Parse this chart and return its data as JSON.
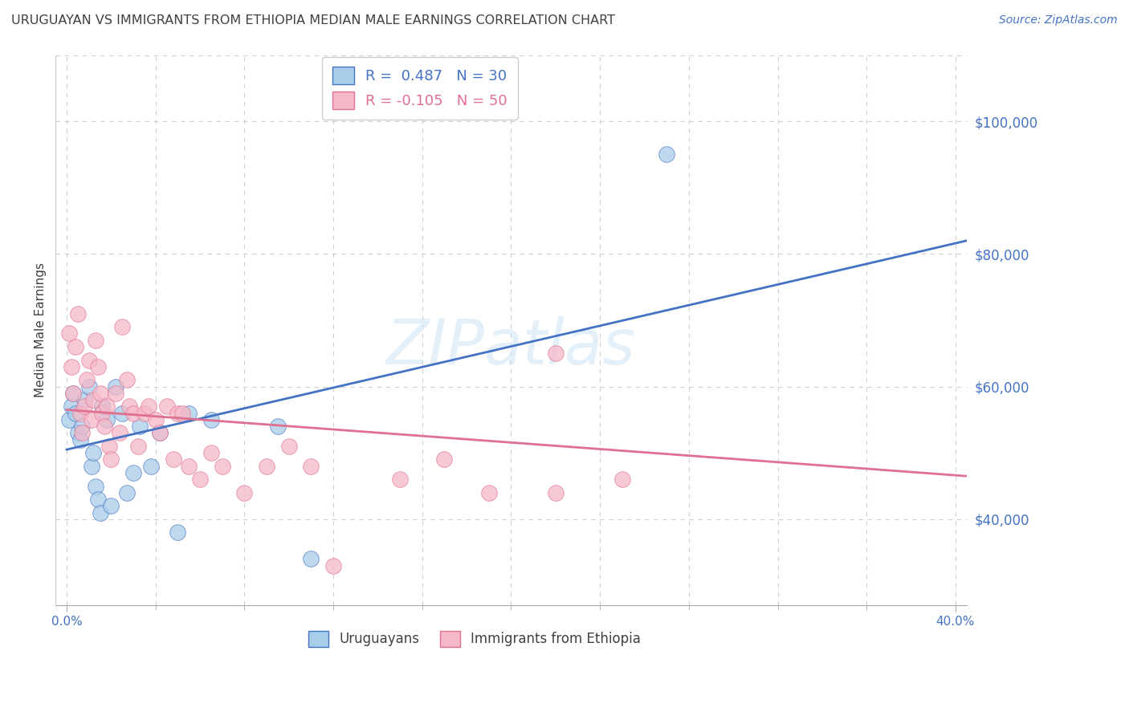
{
  "title": "URUGUAYAN VS IMMIGRANTS FROM ETHIOPIA MEDIAN MALE EARNINGS CORRELATION CHART",
  "source": "Source: ZipAtlas.com",
  "ylabel": "Median Male Earnings",
  "xlabel_major_ticks": [
    0.0,
    0.4
  ],
  "xlabel_major_labels": [
    "0.0%",
    "40.0%"
  ],
  "xlabel_minor_ticks": [
    0.04,
    0.08,
    0.12,
    0.16,
    0.2,
    0.24,
    0.28,
    0.32,
    0.36
  ],
  "ytick_labels": [
    "$40,000",
    "$60,000",
    "$80,000",
    "$100,000"
  ],
  "ytick_vals": [
    40000,
    60000,
    80000,
    100000
  ],
  "ylim": [
    27000,
    110000
  ],
  "xlim": [
    -0.005,
    0.405
  ],
  "legend_r1_blue": "R =  0.487",
  "legend_r1_n": "N = 30",
  "legend_r2_pink": "R = -0.105",
  "legend_r2_n": "N = 50",
  "watermark": "ZIPatlas",
  "blue_scatter_color": "#a8cde8",
  "pink_scatter_color": "#f5b8c8",
  "blue_line_color": "#4472c4",
  "pink_line_color": "#e07090",
  "title_color": "#404040",
  "axis_tick_color": "#4472c4",
  "grid_color": "#d0d0d0",
  "background_color": "#ffffff",
  "uruguayan_scatter_x": [
    0.001,
    0.002,
    0.003,
    0.004,
    0.005,
    0.006,
    0.007,
    0.008,
    0.01,
    0.011,
    0.012,
    0.013,
    0.014,
    0.015,
    0.016,
    0.018,
    0.02,
    0.022,
    0.025,
    0.027,
    0.03,
    0.033,
    0.038,
    0.042,
    0.05,
    0.055,
    0.065,
    0.095,
    0.11,
    0.27
  ],
  "uruguayan_scatter_y": [
    55000,
    57000,
    59000,
    56000,
    53000,
    52000,
    54000,
    58000,
    60000,
    48000,
    50000,
    45000,
    43000,
    41000,
    57000,
    55000,
    42000,
    60000,
    56000,
    44000,
    47000,
    54000,
    48000,
    53000,
    38000,
    56000,
    55000,
    54000,
    34000,
    95000
  ],
  "ethiopia_scatter_x": [
    0.001,
    0.002,
    0.003,
    0.004,
    0.005,
    0.006,
    0.007,
    0.008,
    0.009,
    0.01,
    0.011,
    0.012,
    0.013,
    0.014,
    0.015,
    0.016,
    0.017,
    0.018,
    0.019,
    0.02,
    0.022,
    0.024,
    0.025,
    0.027,
    0.028,
    0.03,
    0.032,
    0.035,
    0.037,
    0.04,
    0.042,
    0.045,
    0.048,
    0.05,
    0.052,
    0.055,
    0.06,
    0.065,
    0.07,
    0.08,
    0.09,
    0.1,
    0.11,
    0.12,
    0.15,
    0.17,
    0.19,
    0.22,
    0.25,
    0.22
  ],
  "ethiopia_scatter_y": [
    68000,
    63000,
    59000,
    66000,
    71000,
    56000,
    53000,
    57000,
    61000,
    64000,
    55000,
    58000,
    67000,
    63000,
    59000,
    56000,
    54000,
    57000,
    51000,
    49000,
    59000,
    53000,
    69000,
    61000,
    57000,
    56000,
    51000,
    56000,
    57000,
    55000,
    53000,
    57000,
    49000,
    56000,
    56000,
    48000,
    46000,
    50000,
    48000,
    44000,
    48000,
    51000,
    48000,
    33000,
    46000,
    49000,
    44000,
    44000,
    46000,
    65000
  ],
  "blue_trendline_x": [
    0.0,
    0.405
  ],
  "blue_trendline_y": [
    50500,
    82000
  ],
  "pink_trendline_x": [
    0.0,
    0.405
  ],
  "pink_trendline_y": [
    56500,
    46500
  ]
}
